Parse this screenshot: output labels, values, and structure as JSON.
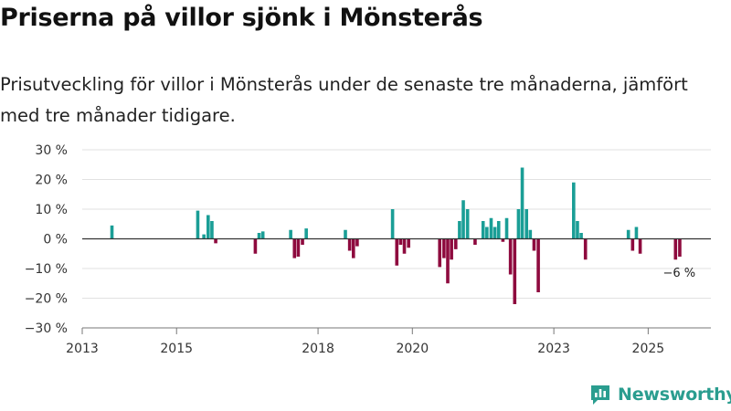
{
  "header": {
    "title": "Priserna på villor sjönk i Mönsterås",
    "subtitle": "Prisutveckling för villor i Mönsterås under de senaste tre månaderna, jämfört med tre månader tidigare."
  },
  "brand": {
    "name": "Newsworthy",
    "icon": "bar-chart-logo-icon",
    "color": "#2a9d8f"
  },
  "chart_data": {
    "type": "bar",
    "ylabel": "",
    "xlabel": "",
    "ylim": [
      -30,
      30
    ],
    "yticks": [
      30,
      20,
      10,
      0,
      -10,
      -20,
      -30
    ],
    "ytick_labels": [
      "30 %",
      "20 %",
      "10 %",
      "0 %",
      "−10 %",
      "−20 %",
      "−30 %"
    ],
    "xlim": [
      2013,
      2026.33
    ],
    "xticks": [
      2013,
      2015,
      2018,
      2020,
      2023,
      2025
    ],
    "xtick_labels": [
      "2013",
      "2015",
      "2018",
      "2020",
      "2023",
      "2025"
    ],
    "colors": {
      "positive": "#1a9e96",
      "negative": "#8e0a3e"
    },
    "annotation": {
      "text": "−6 %",
      "x": 2025.58,
      "y": -6
    },
    "series": [
      {
        "name": "Prisutveckling",
        "x": [
          2013.63,
          2015.45,
          2015.58,
          2015.67,
          2015.75,
          2015.83,
          2016.67,
          2016.75,
          2016.83,
          2017.42,
          2017.5,
          2017.58,
          2017.67,
          2017.75,
          2018.58,
          2018.67,
          2018.75,
          2018.83,
          2019.58,
          2019.67,
          2019.75,
          2019.83,
          2019.92,
          2020.58,
          2020.67,
          2020.75,
          2020.83,
          2020.92,
          2021.0,
          2021.08,
          2021.17,
          2021.33,
          2021.5,
          2021.58,
          2021.67,
          2021.75,
          2021.83,
          2021.92,
          2022.0,
          2022.08,
          2022.17,
          2022.25,
          2022.33,
          2022.42,
          2022.5,
          2022.58,
          2022.67,
          2022.75,
          2023.42,
          2023.5,
          2023.58,
          2023.67,
          2024.58,
          2024.67,
          2024.75,
          2024.83,
          2025.58,
          2025.67
        ],
        "values": [
          4.5,
          9.5,
          1.5,
          8,
          6,
          -1.5,
          -5,
          2,
          2.5,
          3,
          -6.5,
          -6,
          -2,
          3.5,
          3,
          -4,
          -6.5,
          -2.5,
          10,
          -9,
          -2,
          -5,
          -3,
          -9.5,
          -6.5,
          -15,
          -7,
          -3.5,
          6,
          13,
          10,
          -2,
          6,
          4,
          7,
          4,
          6,
          -1,
          7,
          -12,
          -22,
          10,
          24,
          10,
          3,
          -4,
          -18,
          0,
          19,
          6,
          2,
          -7,
          3,
          -4,
          4,
          -5,
          -7,
          -6
        ]
      }
    ]
  }
}
